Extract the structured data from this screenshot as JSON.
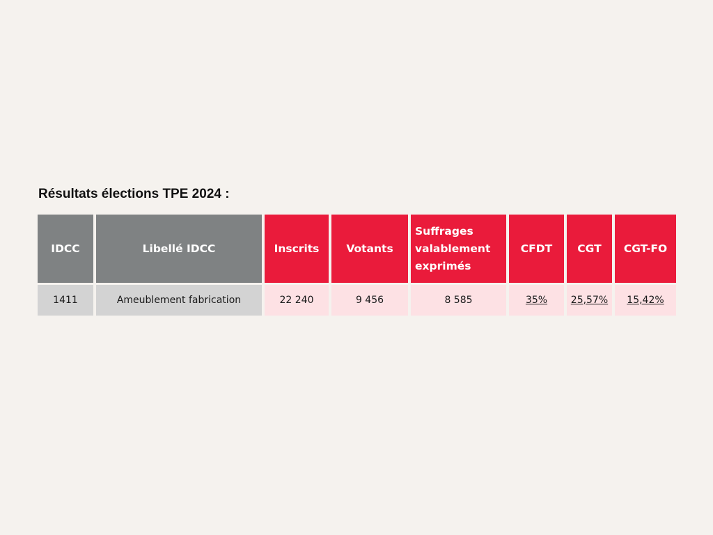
{
  "title": "Résultats élections TPE 2024 :",
  "table": {
    "headers": {
      "idcc": "IDCC",
      "libelle": "Libellé IDCC",
      "inscrits": "Inscrits",
      "votants": "Votants",
      "suffrages": "Suffrages valablement exprimés",
      "cfdt": "CFDT",
      "cgt": "CGT",
      "cgtfo": "CGT-FO"
    },
    "rows": [
      {
        "idcc": "1411",
        "libelle": "Ameublement fabrication",
        "inscrits": "22 240",
        "votants": "9 456",
        "suffrages": "8 585",
        "cfdt": "35%",
        "cgt": "25,57%",
        "cgtfo": "15,42%"
      }
    ]
  },
  "colors": {
    "background": "#f5f2ee",
    "header_grey": "#7f8283",
    "header_red": "#ea1b3b",
    "cell_grey": "#d3d3d3",
    "cell_pink": "#fde1e4"
  }
}
